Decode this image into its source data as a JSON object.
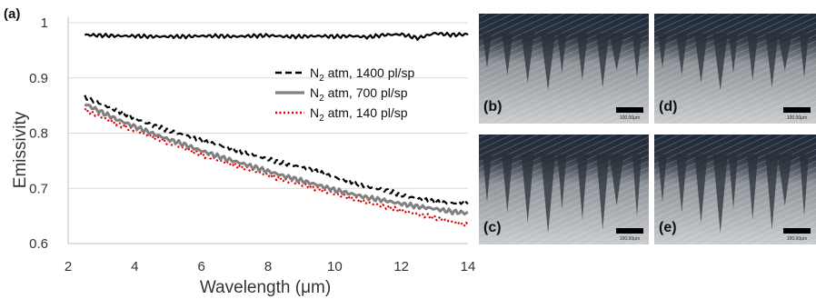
{
  "chart_data": {
    "type": "line",
    "panel_label": "(a)",
    "xlabel": "Wavelength (μm)",
    "ylabel": "Emissivity",
    "xlim": [
      2,
      14
    ],
    "ylim": [
      0.6,
      1.0
    ],
    "x_ticks": [
      "2",
      "4",
      "6",
      "8",
      "10",
      "12",
      "14"
    ],
    "y_ticks": [
      "0.6",
      "0.7",
      "0.8",
      "0.9",
      "1"
    ],
    "grid": "horizontal",
    "legend_position": "upper-right",
    "x": [
      2.5,
      3,
      3.5,
      4,
      4.5,
      5,
      5.5,
      6,
      6.5,
      7,
      7.5,
      8,
      8.5,
      9,
      9.5,
      10,
      10.5,
      11,
      11.5,
      12,
      12.5,
      13,
      13.5,
      14
    ],
    "series": [
      {
        "name": "",
        "color": "#000000",
        "style": "solid",
        "values": [
          0.978,
          0.977,
          0.976,
          0.976,
          0.975,
          0.975,
          0.975,
          0.976,
          0.976,
          0.975,
          0.976,
          0.977,
          0.975,
          0.975,
          0.976,
          0.975,
          0.976,
          0.974,
          0.978,
          0.979,
          0.972,
          0.981,
          0.978,
          0.979
        ]
      },
      {
        "legend_prefix": "N",
        "legend_sub": "2",
        "legend_suffix": " atm, 1400 pl/sp",
        "color": "#000000",
        "style": "dashed",
        "values": [
          0.865,
          0.853,
          0.84,
          0.827,
          0.815,
          0.805,
          0.796,
          0.786,
          0.779,
          0.77,
          0.762,
          0.753,
          0.745,
          0.738,
          0.73,
          0.72,
          0.712,
          0.703,
          0.697,
          0.688,
          0.681,
          0.676,
          0.673,
          0.676
        ]
      },
      {
        "legend_prefix": "N",
        "legend_sub": "2",
        "legend_suffix": " atm, 700 pl/sp",
        "color": "#808080",
        "style": "solid",
        "values": [
          0.853,
          0.838,
          0.824,
          0.812,
          0.8,
          0.789,
          0.779,
          0.768,
          0.758,
          0.749,
          0.74,
          0.731,
          0.722,
          0.714,
          0.706,
          0.697,
          0.69,
          0.683,
          0.678,
          0.672,
          0.667,
          0.663,
          0.658,
          0.655
        ]
      },
      {
        "legend_prefix": "N",
        "legend_sub": "2",
        "legend_suffix": " atm, 140 pl/sp",
        "color": "#e00000",
        "style": "dotted",
        "values": [
          0.842,
          0.829,
          0.816,
          0.805,
          0.794,
          0.783,
          0.772,
          0.761,
          0.751,
          0.742,
          0.733,
          0.724,
          0.715,
          0.707,
          0.699,
          0.69,
          0.682,
          0.674,
          0.667,
          0.66,
          0.653,
          0.647,
          0.64,
          0.633
        ]
      }
    ]
  },
  "micrographs": [
    {
      "label": "(b)",
      "scale_text": "100.00μm"
    },
    {
      "label": "(d)",
      "scale_text": "100.00μm"
    },
    {
      "label": "(c)",
      "scale_text": "100.00μm"
    },
    {
      "label": "(e)",
      "scale_text": "100.00μm"
    }
  ]
}
